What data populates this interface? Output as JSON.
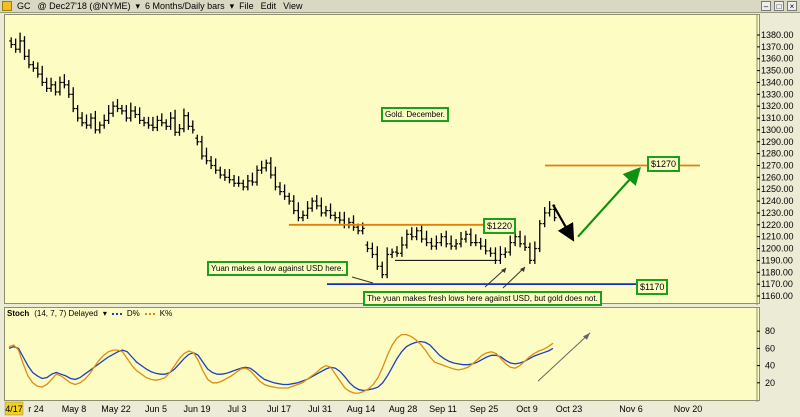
{
  "titlebar": {
    "symbol": "GC",
    "contract": "@ Dec27'18 (@NYME)",
    "timeframe": "6 Months/Daily bars",
    "menus": [
      "File",
      "Edit",
      "View"
    ]
  },
  "annotations": {
    "gold_label": "Gold. December.",
    "yuan_low": "Yuan makes a low against USD here.",
    "yuan_fresh": "The yuan makes fresh lows here against USD, but gold does not.",
    "price_1220": "$1220",
    "price_1270": "$1270",
    "price_1170": "$1170"
  },
  "stoch_header": {
    "title": "Stoch",
    "params": "(14, 7, 7) Delayed",
    "d_label": "D%",
    "k_label": "K%"
  },
  "colors": {
    "background": "#fdfdc3",
    "price_bars": "#000000",
    "orange_level": "#e0800a",
    "blue_level": "#1530c0",
    "green_arrow": "#109010",
    "d_line": "#1f3fbf",
    "k_line": "#e08c10"
  },
  "chart_data": [
    {
      "type": "ohlc",
      "title": "",
      "x_ticks": [
        "4/17",
        "r 24",
        "May 8",
        "May 22",
        "Jun 5",
        "Jun 19",
        "Jul 3",
        "Jul 17",
        "Jul 31",
        "Aug 14",
        "Aug 28",
        "Sep 11",
        "Sep 25",
        "Oct 9",
        "Oct 23",
        "Nov 6",
        "Nov 20"
      ],
      "y_ticks": [
        1160,
        1170,
        1180,
        1190,
        1200,
        1210,
        1220,
        1230,
        1240,
        1250,
        1260,
        1270,
        1280,
        1290,
        1300,
        1310,
        1320,
        1330,
        1340,
        1350,
        1360,
        1370,
        1380
      ],
      "ylim": [
        1155,
        1385
      ],
      "series": [
        {
          "segment": "Apr-Jun",
          "closes": [
            1372,
            1368,
            1375,
            1362,
            1355,
            1352,
            1347,
            1340,
            1335,
            1338,
            1332,
            1340,
            1338,
            1330,
            1318,
            1310,
            1306,
            1304,
            1310,
            1300,
            1304,
            1308,
            1314,
            1320,
            1318,
            1316,
            1310,
            1316,
            1313,
            1308,
            1306,
            1304,
            1302,
            1308,
            1306,
            1303,
            1310,
            1298,
            1301,
            1312,
            1303,
            1300
          ]
        },
        {
          "segment": "Jun-Aug",
          "closes": [
            1290,
            1278,
            1274,
            1270,
            1266,
            1262,
            1260,
            1258,
            1255,
            1255,
            1252,
            1257,
            1256,
            1266,
            1268,
            1272,
            1262,
            1252,
            1248,
            1244,
            1240,
            1232,
            1226,
            1228,
            1234,
            1240,
            1236,
            1230,
            1232,
            1228,
            1226,
            1224,
            1220,
            1222,
            1218,
            1215,
            1217
          ]
        },
        {
          "segment": "Aug-Oct",
          "closes": [
            1200,
            1195,
            1185,
            1178,
            1195,
            1197,
            1196,
            1203,
            1212,
            1210,
            1215,
            1208,
            1205,
            1202,
            1205,
            1210,
            1204,
            1202,
            1204,
            1208,
            1212,
            1205,
            1205,
            1202,
            1198,
            1196,
            1190,
            1195,
            1197,
            1205,
            1210,
            1204,
            1201,
            1190,
            1200,
            1221,
            1230,
            1233,
            1226
          ]
        }
      ],
      "levels": [
        {
          "name": "resistance",
          "value": 1220,
          "color": "orange"
        },
        {
          "name": "target",
          "value": 1270,
          "color": "orange"
        },
        {
          "name": "support",
          "value": 1170,
          "color": "blue"
        }
      ]
    },
    {
      "type": "line",
      "title": "Stoch",
      "y_ticks": [
        20,
        40,
        60,
        80
      ],
      "ylim": [
        0,
        100
      ],
      "series": [
        {
          "name": "D%",
          "values": [
            60,
            62,
            60,
            50,
            40,
            32,
            28,
            25,
            26,
            30,
            32,
            30,
            28,
            25,
            24,
            26,
            30,
            34,
            38,
            42,
            46,
            50,
            53,
            56,
            58,
            56,
            50,
            44,
            40,
            36,
            33,
            31,
            30,
            30,
            32,
            36,
            42,
            48,
            53,
            55,
            52,
            44,
            36,
            32,
            30,
            30,
            31,
            33,
            35,
            37,
            38,
            37,
            33,
            28,
            24,
            22,
            20,
            19,
            18,
            18,
            19,
            20,
            22,
            24,
            27,
            30,
            33,
            36,
            38,
            37,
            33,
            27,
            20,
            15,
            12,
            11,
            12,
            13,
            15,
            20,
            28,
            38,
            48,
            56,
            62,
            65,
            67,
            68,
            67,
            64,
            58,
            52,
            48,
            45,
            43,
            42,
            41,
            41,
            42,
            44,
            47,
            50,
            52,
            52,
            50,
            46,
            43,
            42,
            43,
            45,
            48,
            51,
            53,
            55,
            57,
            60
          ]
        },
        {
          "name": "K%",
          "values": [
            62,
            64,
            58,
            42,
            28,
            20,
            16,
            15,
            18,
            24,
            30,
            28,
            24,
            20,
            18,
            20,
            24,
            30,
            38,
            46,
            52,
            56,
            58,
            58,
            56,
            48,
            40,
            34,
            30,
            26,
            24,
            23,
            24,
            26,
            32,
            40,
            48,
            54,
            57,
            55,
            46,
            34,
            24,
            20,
            20,
            22,
            25,
            28,
            32,
            36,
            37,
            34,
            28,
            22,
            18,
            16,
            15,
            14,
            14,
            14,
            16,
            18,
            20,
            24,
            28,
            32,
            37,
            40,
            38,
            30,
            22,
            14,
            10,
            8,
            8,
            10,
            13,
            18,
            26,
            38,
            52,
            64,
            72,
            76,
            76,
            74,
            70,
            65,
            58,
            50,
            44,
            42,
            40,
            38,
            36,
            35,
            36,
            38,
            42,
            47,
            52,
            55,
            56,
            54,
            48,
            42,
            38,
            37,
            40,
            45,
            50,
            54,
            57,
            59,
            62,
            66
          ]
        }
      ]
    }
  ]
}
